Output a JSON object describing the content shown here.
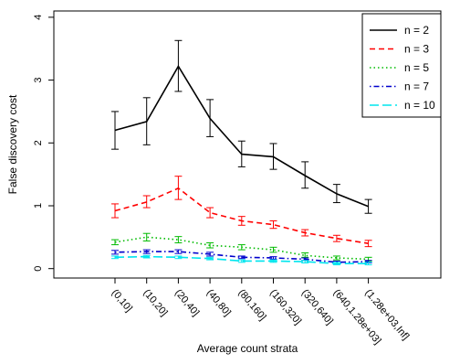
{
  "chart_data": {
    "type": "line",
    "title": "",
    "xlabel": "Average count strata",
    "ylabel": "False discovery cost",
    "categories": [
      "(0,10]",
      "(10,20]",
      "(20,40]",
      "(40,80]",
      "(80,160]",
      "(160,320]",
      "(320,640]",
      "(640,1.28e+03]",
      "(1.28e+03,Inf]"
    ],
    "ylim": [
      -0.15,
      4.1
    ],
    "yticks": [
      0,
      1,
      2,
      3,
      4
    ],
    "grid": false,
    "legend_position": "top-right",
    "series": [
      {
        "name": "n = 2",
        "color": "#000000",
        "dash": "solid",
        "values": [
          2.2,
          2.34,
          3.22,
          2.39,
          1.82,
          1.78,
          1.48,
          1.19,
          0.99
        ],
        "lower": [
          1.9,
          1.97,
          2.82,
          2.1,
          1.62,
          1.58,
          1.28,
          1.05,
          0.88
        ],
        "upper": [
          2.5,
          2.72,
          3.63,
          2.69,
          2.03,
          1.99,
          1.7,
          1.34,
          1.1
        ]
      },
      {
        "name": "n = 3",
        "color": "#ff0000",
        "dash": "dashed",
        "values": [
          0.92,
          1.06,
          1.28,
          0.89,
          0.76,
          0.7,
          0.57,
          0.48,
          0.4
        ],
        "lower": [
          0.81,
          0.97,
          1.1,
          0.81,
          0.69,
          0.64,
          0.52,
          0.43,
          0.35
        ],
        "upper": [
          1.03,
          1.16,
          1.47,
          0.97,
          0.83,
          0.76,
          0.62,
          0.53,
          0.45
        ]
      },
      {
        "name": "n = 5",
        "color": "#00bb00",
        "dash": "dotted",
        "values": [
          0.42,
          0.5,
          0.46,
          0.37,
          0.34,
          0.3,
          0.21,
          0.17,
          0.15
        ],
        "lower": [
          0.38,
          0.44,
          0.41,
          0.33,
          0.3,
          0.26,
          0.18,
          0.14,
          0.12
        ],
        "upper": [
          0.46,
          0.56,
          0.51,
          0.41,
          0.38,
          0.34,
          0.25,
          0.2,
          0.18
        ]
      },
      {
        "name": "n = 7",
        "color": "#0000cc",
        "dash": "dotdash",
        "values": [
          0.26,
          0.27,
          0.27,
          0.23,
          0.18,
          0.17,
          0.15,
          0.1,
          0.11
        ],
        "lower": [
          0.23,
          0.24,
          0.24,
          0.2,
          0.16,
          0.15,
          0.13,
          0.08,
          0.09
        ],
        "upper": [
          0.29,
          0.3,
          0.3,
          0.26,
          0.2,
          0.19,
          0.17,
          0.12,
          0.13
        ]
      },
      {
        "name": "n = 10",
        "color": "#00e5ee",
        "dash": "longdash",
        "values": [
          0.18,
          0.19,
          0.18,
          0.16,
          0.12,
          0.12,
          0.11,
          0.08,
          0.08
        ],
        "lower": [
          0.16,
          0.17,
          0.16,
          0.14,
          0.1,
          0.1,
          0.09,
          0.06,
          0.06
        ],
        "upper": [
          0.2,
          0.21,
          0.2,
          0.18,
          0.14,
          0.14,
          0.13,
          0.1,
          0.1
        ]
      }
    ]
  }
}
